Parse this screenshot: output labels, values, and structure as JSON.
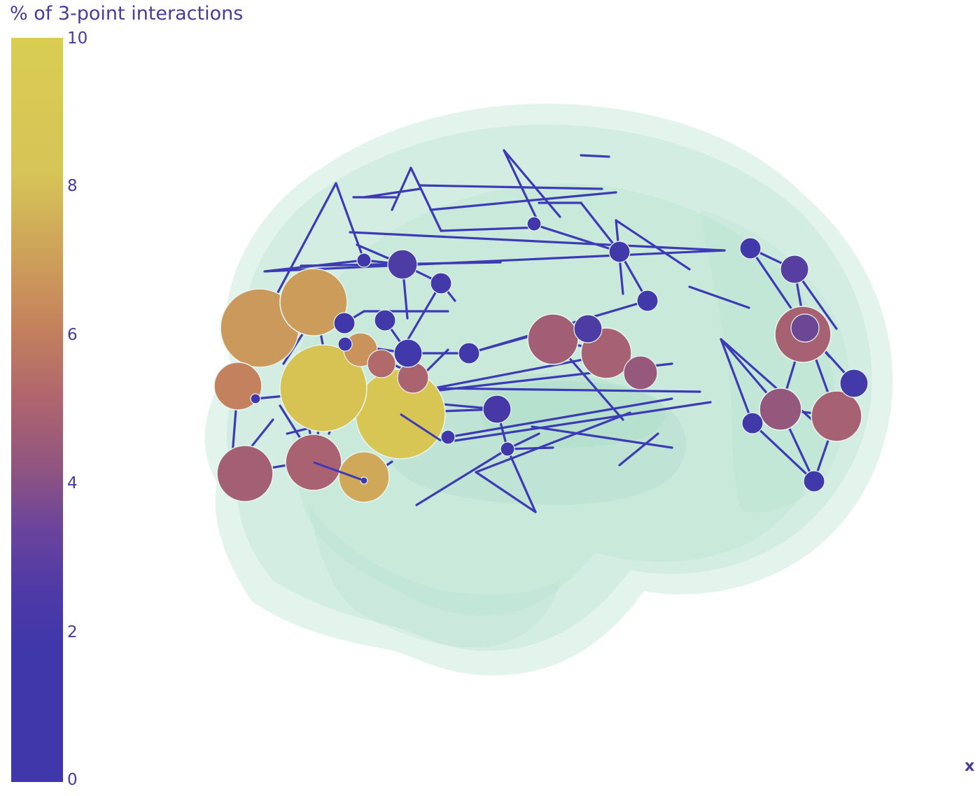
{
  "chart_data": {
    "type": "scatter",
    "variant": "3d-network-on-brain-mesh",
    "title": "",
    "xlabel": "x",
    "ylabel": "",
    "colorbar": {
      "title": "% of 3-point interactions",
      "range": [
        0,
        10
      ],
      "ticks": [
        "0",
        "2",
        "4",
        "6",
        "8",
        "10"
      ],
      "colorscale": [
        "#3f37aa",
        "#6a449c",
        "#b0666c",
        "#cea55a",
        "#d9cd52"
      ]
    },
    "mesh_color": "#a8dcc6",
    "edge_color": "#3d3ab5",
    "node_outline_color": "#e6f4ee"
  }
}
